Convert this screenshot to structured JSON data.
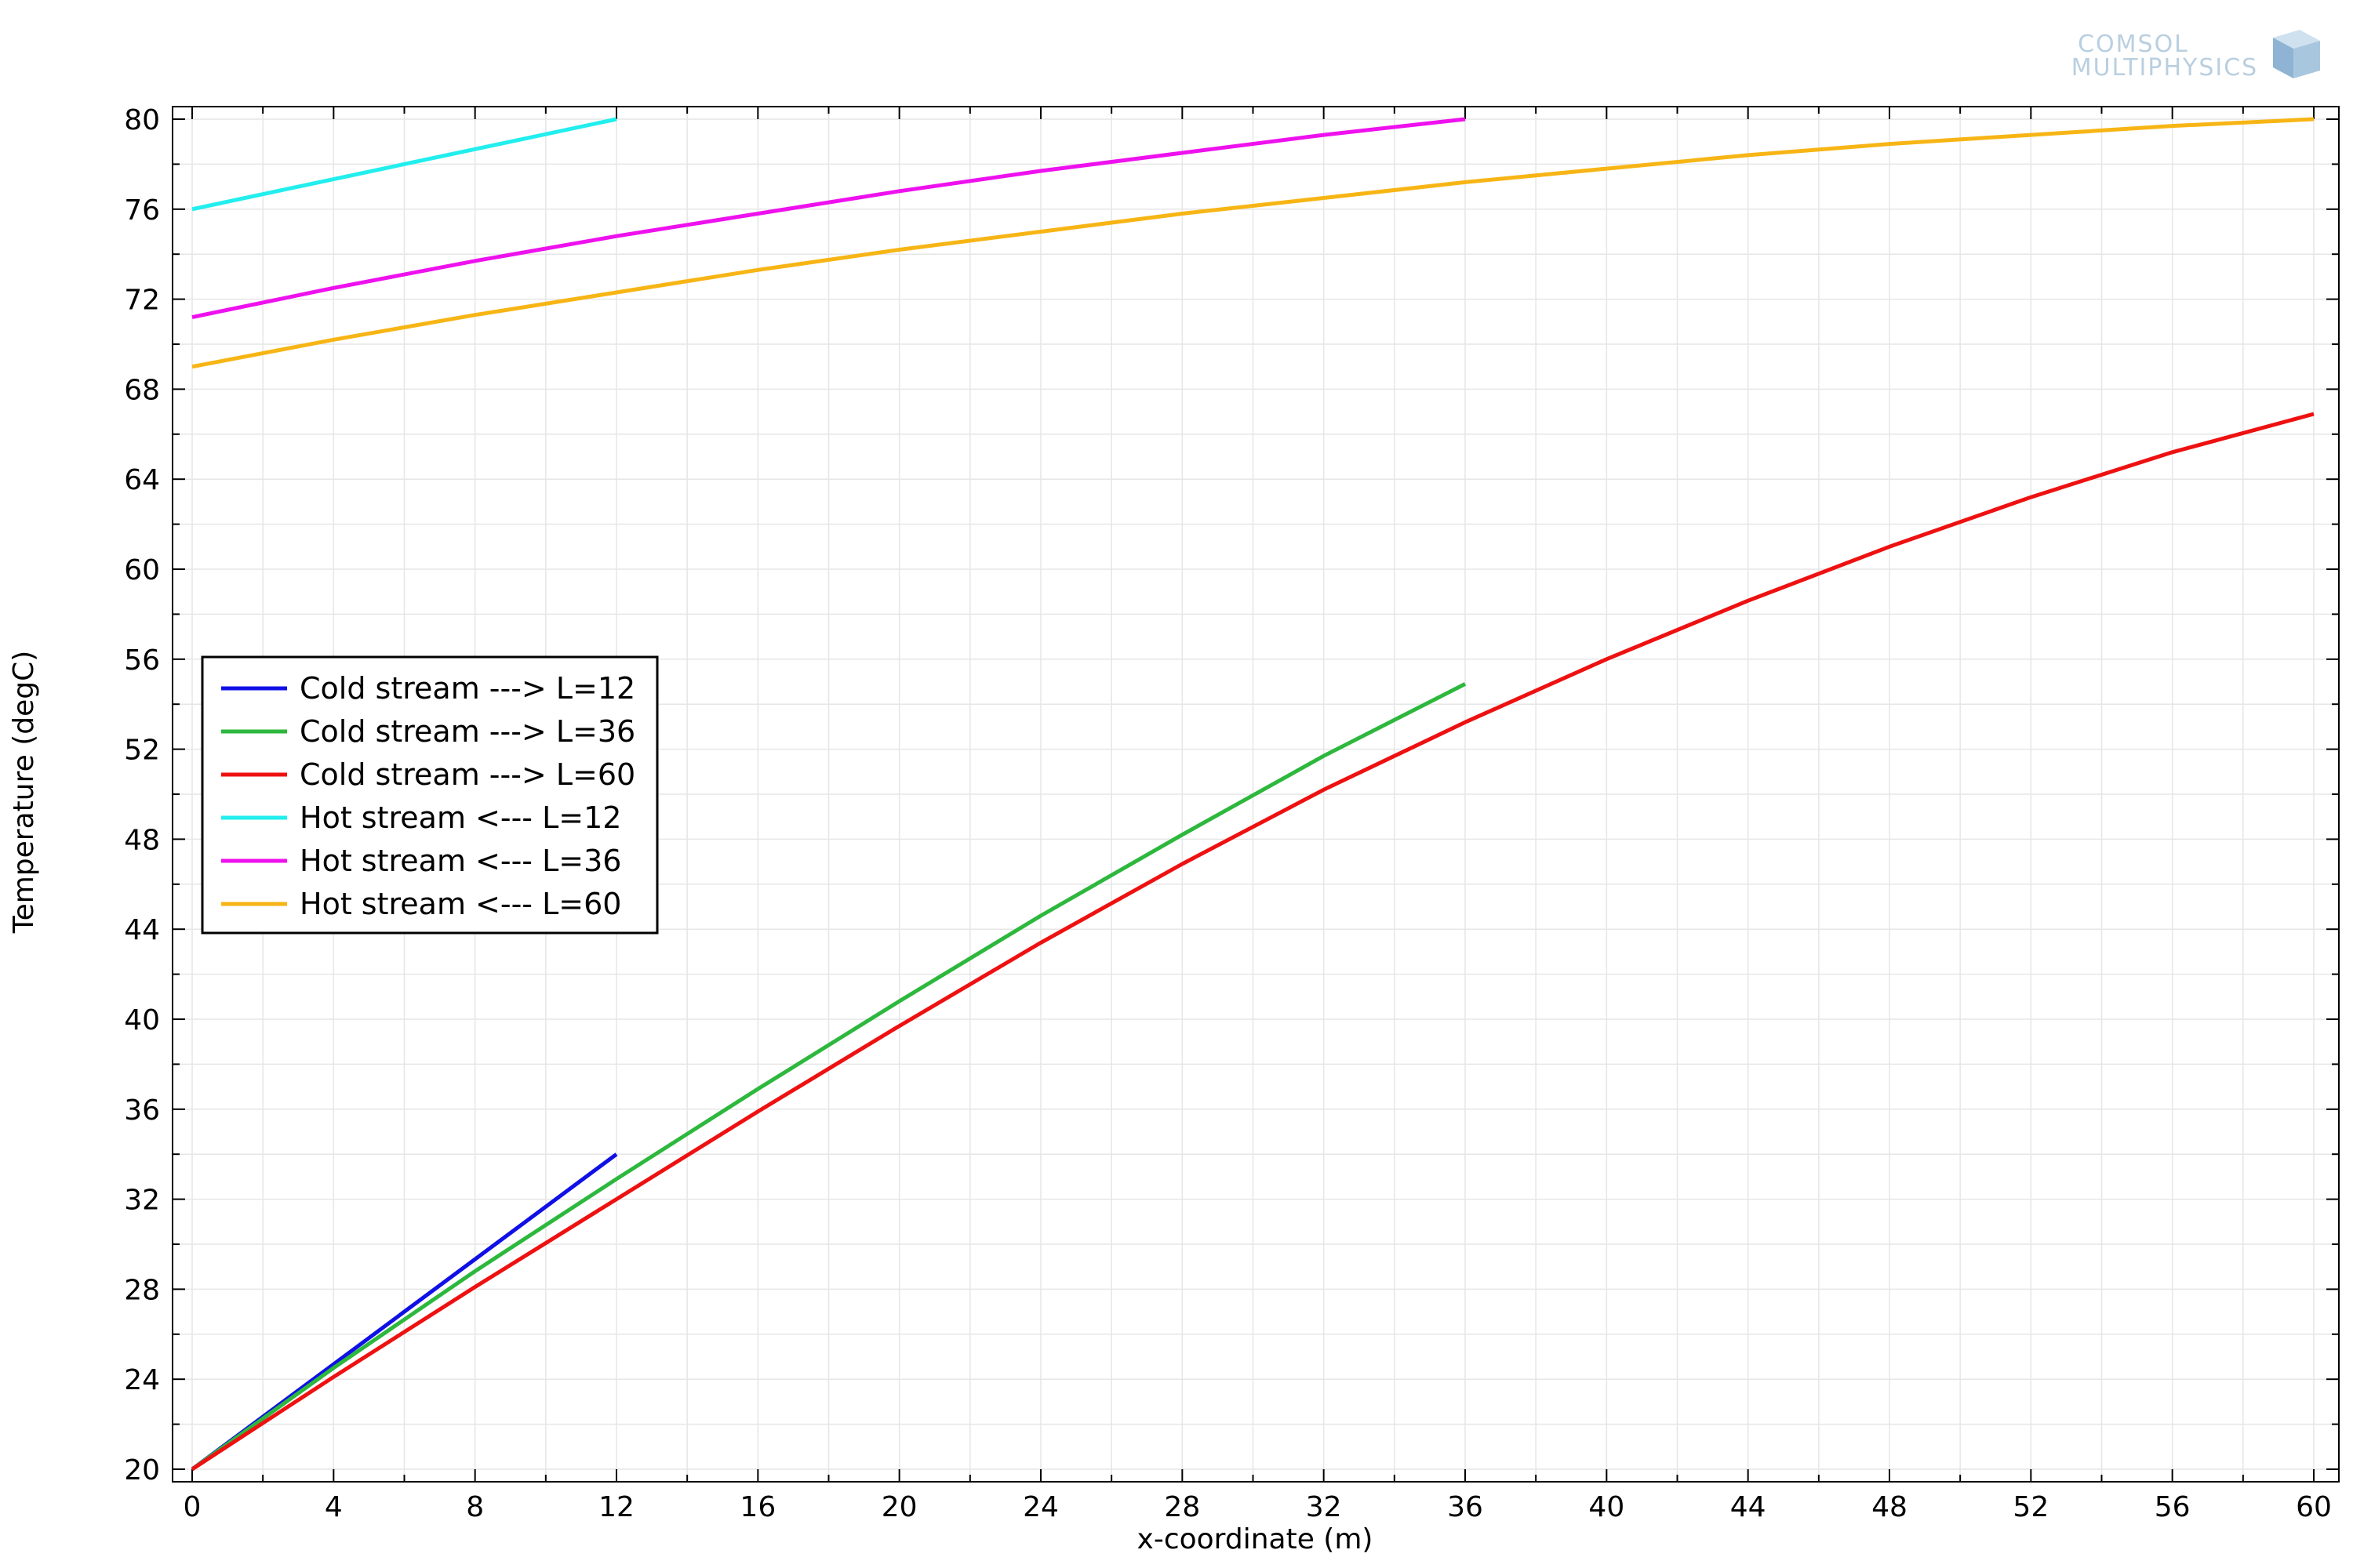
{
  "logo": {
    "line1": "COMSOL",
    "line2": "MULTIPHYSICS"
  },
  "chart_data": {
    "type": "line",
    "title": "",
    "xlabel": "x-coordinate (m)",
    "ylabel": "Temperature (degC)",
    "xlim": [
      0,
      60
    ],
    "ylim": [
      20,
      80
    ],
    "xticks": [
      0,
      4,
      8,
      12,
      16,
      20,
      24,
      28,
      32,
      36,
      40,
      44,
      48,
      52,
      56,
      60
    ],
    "yticks": [
      20,
      24,
      28,
      32,
      36,
      40,
      44,
      48,
      52,
      56,
      60,
      64,
      68,
      72,
      76,
      80
    ],
    "grid": true,
    "legend_position": "middle-left",
    "series": [
      {
        "name": "Cold stream ---> L=12",
        "color": "#1010e6",
        "x": [
          0,
          12
        ],
        "y": [
          20,
          34
        ]
      },
      {
        "name": "Cold stream ---> L=36",
        "color": "#2db83d",
        "x": [
          0,
          4,
          8,
          12,
          16,
          20,
          24,
          28,
          32,
          36
        ],
        "y": [
          20,
          24.5,
          28.8,
          32.9,
          36.9,
          40.8,
          44.6,
          48.2,
          51.7,
          54.9
        ]
      },
      {
        "name": "Cold stream ---> L=60",
        "color": "#ee1111",
        "x": [
          0,
          4,
          8,
          12,
          16,
          20,
          24,
          28,
          32,
          36,
          40,
          44,
          48,
          52,
          56,
          60
        ],
        "y": [
          20,
          24.1,
          28.1,
          32.0,
          35.9,
          39.7,
          43.4,
          46.9,
          50.2,
          53.2,
          56.0,
          58.6,
          61.0,
          63.2,
          65.2,
          66.9
        ]
      },
      {
        "name": "Hot stream <--- L=12",
        "color": "#22eeee",
        "x": [
          0,
          12
        ],
        "y": [
          76,
          80
        ]
      },
      {
        "name": "Hot stream <--- L=36",
        "color": "#ee11ee",
        "x": [
          0,
          4,
          8,
          12,
          16,
          20,
          24,
          28,
          32,
          36
        ],
        "y": [
          71.2,
          72.5,
          73.7,
          74.8,
          75.8,
          76.8,
          77.7,
          78.5,
          79.3,
          80
        ]
      },
      {
        "name": "Hot stream <--- L=60",
        "color": "#f7b515",
        "x": [
          0,
          4,
          8,
          12,
          16,
          20,
          24,
          28,
          32,
          36,
          40,
          44,
          48,
          52,
          56,
          60
        ],
        "y": [
          69.0,
          70.2,
          71.3,
          72.3,
          73.3,
          74.2,
          75.0,
          75.8,
          76.5,
          77.2,
          77.8,
          78.4,
          78.9,
          79.3,
          79.7,
          80.0
        ]
      }
    ]
  }
}
